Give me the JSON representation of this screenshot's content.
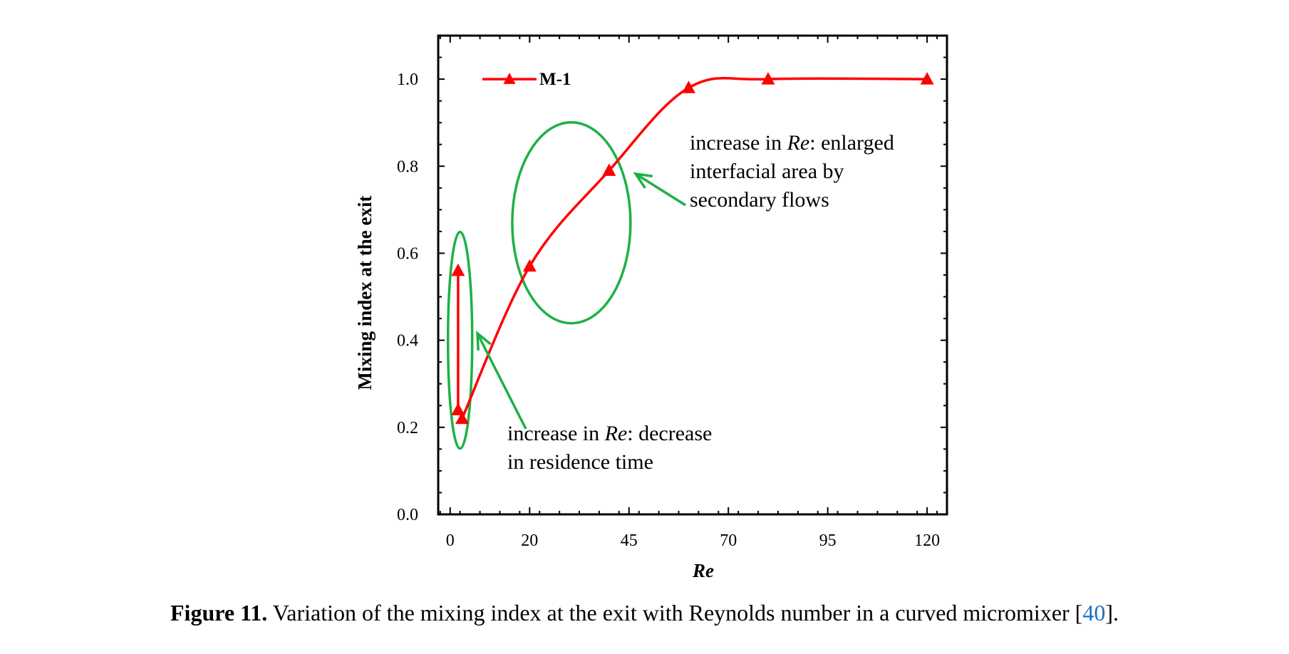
{
  "chart_data": {
    "type": "line",
    "title": "",
    "xlabel": "Re",
    "ylabel": "Mixing index at the exit",
    "xlim": [
      -3,
      125
    ],
    "ylim": [
      0,
      1.1
    ],
    "x_ticks": [
      0,
      20,
      45,
      70,
      95,
      120
    ],
    "x_tick_labels": [
      "0",
      "20",
      "45",
      "70",
      "95",
      "120"
    ],
    "y_ticks": [
      0,
      0.2,
      0.4,
      0.6,
      0.8,
      1.0
    ],
    "y_tick_labels": [
      "0.0",
      "0.2",
      "0.4",
      "0.6",
      "0.8",
      "1.0"
    ],
    "grid": false,
    "legend_position": "top-left",
    "series": [
      {
        "name": "M-1",
        "color": "#ff0000",
        "marker": "triangle",
        "x": [
          2,
          2,
          3,
          20,
          40,
          60,
          80,
          120
        ],
        "y": [
          0.56,
          0.24,
          0.22,
          0.57,
          0.79,
          0.98,
          1.0,
          1.0
        ]
      }
    ],
    "annotations": [
      {
        "lines": [
          [
            {
              "text": "increase in ",
              "italic": false
            },
            {
              "text": "Re",
              "italic": true
            },
            {
              "text": ": enlarged",
              "italic": false
            }
          ],
          [
            {
              "text": "interfacial area by",
              "italic": false
            }
          ],
          [
            {
              "text": "secondary flows",
              "italic": false
            }
          ]
        ]
      },
      {
        "lines": [
          [
            {
              "text": "increase in ",
              "italic": false
            },
            {
              "text": "Re",
              "italic": true
            },
            {
              "text": ": decrease",
              "italic": false
            }
          ],
          [
            {
              "text": "in residence time",
              "italic": false
            }
          ]
        ]
      }
    ],
    "highlight_color": "#1db144"
  },
  "caption": {
    "label": "Figure 11.",
    "text": " Variation of the mixing index at the exit with Reynolds number in a curved micromixer [",
    "ref": "40",
    "end": "]."
  }
}
